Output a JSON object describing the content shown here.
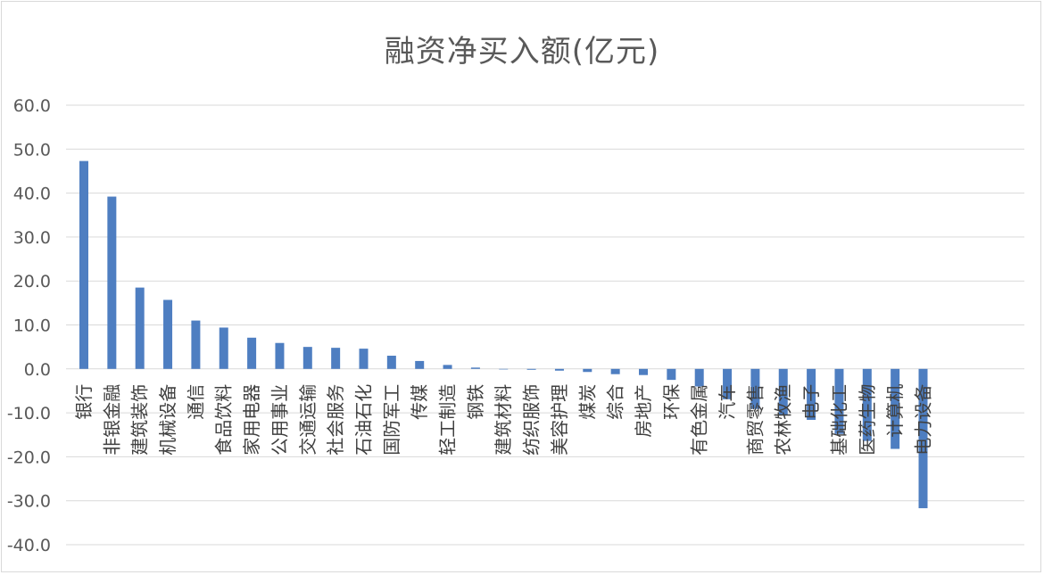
{
  "chart_data": {
    "type": "bar",
    "title": "融资净买入额(亿元)",
    "xlabel": "",
    "ylabel": "",
    "ylim": [
      -40,
      60
    ],
    "yticks": [
      "60.0",
      "50.0",
      "40.0",
      "30.0",
      "20.0",
      "10.0",
      "0.0",
      "-10.0",
      "-20.0",
      "-30.0",
      "-40.0"
    ],
    "grid": true,
    "legend": "none",
    "color": "#4e7ec1",
    "categories": [
      "银行",
      "非银金融",
      "建筑装饰",
      "机械设备",
      "通信",
      "食品饮料",
      "家用电器",
      "公用事业",
      "交通运输",
      "社会服务",
      "石油石化",
      "国防军工",
      "传媒",
      "轻工制造",
      "钢铁",
      "建筑材料",
      "纺织服饰",
      "美容护理",
      "煤炭",
      "综合",
      "房地产",
      "环保",
      "有色金属",
      "汽车",
      "商贸零售",
      "农林牧渔",
      "电子",
      "基础化工",
      "医药生物",
      "计算机",
      "电力设备"
    ],
    "values": [
      47.3,
      39.2,
      18.5,
      15.7,
      11.0,
      9.4,
      7.1,
      5.9,
      5.0,
      4.8,
      4.6,
      3.0,
      1.8,
      0.9,
      0.3,
      -0.1,
      -0.2,
      -0.4,
      -0.7,
      -1.2,
      -1.4,
      -2.5,
      -4.0,
      -6.9,
      -9.1,
      -10.6,
      -11.6,
      -14.8,
      -16.4,
      -18.2,
      -31.7
    ]
  }
}
